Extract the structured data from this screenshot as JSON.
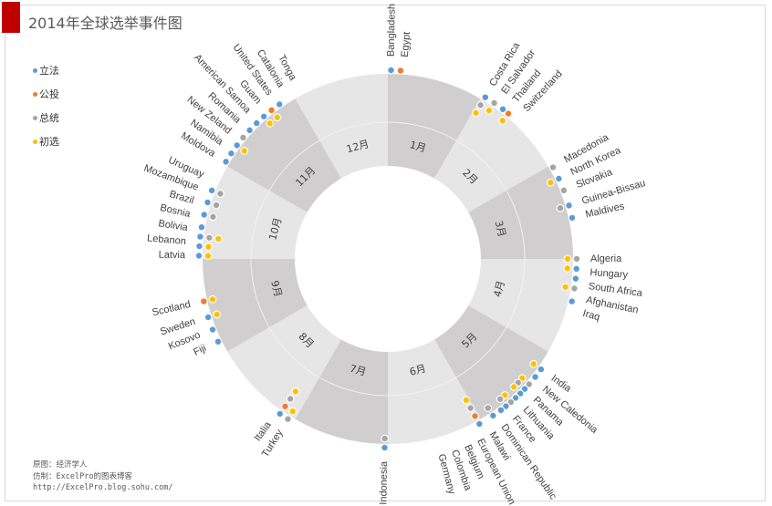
{
  "title": "2014年全球选举事件图",
  "legend": [
    {
      "key": "leg",
      "label": "立法",
      "color": "#5b9bd5"
    },
    {
      "key": "ref",
      "label": "公投",
      "color": "#ed7d31"
    },
    {
      "key": "pres",
      "label": "总统",
      "color": "#a5a5a5"
    },
    {
      "key": "pri",
      "label": "初选",
      "color": "#ffc000"
    }
  ],
  "source": {
    "line1": "原图：经济学人",
    "line2": "仿制：ExcelPro的图表博客",
    "line3": "http://ExcelPro.blog.sohu.com/"
  },
  "chart_data": {
    "type": "radial-timeline",
    "title": "2014年全球选举事件图",
    "months": [
      "1月",
      "2月",
      "3月",
      "4月",
      "5月",
      "6月",
      "7月",
      "8月",
      "9月",
      "10月",
      "11月",
      "12月"
    ],
    "month_colors": {
      "dark": "#d0cece",
      "light": "#e7e6e6"
    },
    "events": [
      {
        "country": "Bangladesh",
        "month": 1,
        "day": 2,
        "types": [
          "leg"
        ]
      },
      {
        "country": "Egypt",
        "month": 1,
        "day": 5,
        "types": [
          "ref"
        ]
      },
      {
        "country": "Costa Rica",
        "month": 2,
        "day": 2,
        "types": [
          "leg",
          "pres",
          "pri"
        ]
      },
      {
        "country": "El Salvador",
        "month": 2,
        "day": 5,
        "types": [
          "pres",
          "pri"
        ]
      },
      {
        "country": "Thailand",
        "month": 2,
        "day": 8,
        "types": [
          "leg"
        ]
      },
      {
        "country": "Switzerland",
        "month": 2,
        "day": 10,
        "types": [
          "ref",
          "pri"
        ]
      },
      {
        "country": "Macedonia",
        "month": 3,
        "day": 2,
        "types": [
          "pres"
        ]
      },
      {
        "country": "North Korea",
        "month": 3,
        "day": 6,
        "types": [
          "leg",
          "pri"
        ]
      },
      {
        "country": "Slovakia",
        "month": 3,
        "day": 10,
        "types": [
          "pres"
        ]
      },
      {
        "country": "Guinea-Bissau",
        "month": 3,
        "day": 15,
        "types": [
          "leg",
          "pres"
        ]
      },
      {
        "country": "Maldives",
        "month": 3,
        "day": 19,
        "types": [
          "leg"
        ]
      },
      {
        "country": "Algeria",
        "month": 4,
        "day": 1,
        "types": [
          "pres",
          "pri"
        ]
      },
      {
        "country": "Hungary",
        "month": 4,
        "day": 4,
        "types": [
          "leg",
          "pri"
        ]
      },
      {
        "country": "South Africa",
        "month": 4,
        "day": 7,
        "types": [
          "leg"
        ]
      },
      {
        "country": "Afghanistan",
        "month": 4,
        "day": 10,
        "types": [
          "pres",
          "pri"
        ]
      },
      {
        "country": "Iraq",
        "month": 4,
        "day": 14,
        "types": [
          "leg"
        ]
      },
      {
        "country": "India",
        "month": 5,
        "day": 7,
        "types": [
          "leg",
          "pri"
        ]
      },
      {
        "country": "New Caledonia",
        "month": 5,
        "day": 10,
        "types": [
          "leg"
        ]
      },
      {
        "country": "Panama",
        "month": 5,
        "day": 13,
        "types": [
          "pres",
          "pri"
        ]
      },
      {
        "country": "Lithuania",
        "month": 5,
        "day": 15,
        "types": [
          "leg",
          "pres"
        ]
      },
      {
        "country": "France",
        "month": 5,
        "day": 17,
        "types": [
          "leg",
          "pri"
        ]
      },
      {
        "country": "Dominican Republic",
        "month": 5,
        "day": 19,
        "types": [
          "leg"
        ]
      },
      {
        "country": "Malawi",
        "month": 5,
        "day": 21,
        "types": [
          "pres",
          "pri"
        ]
      },
      {
        "country": "European Union",
        "month": 5,
        "day": 23,
        "types": [
          "leg",
          "pres"
        ]
      },
      {
        "country": "Belgium",
        "month": 5,
        "day": 25,
        "types": [
          "leg"
        ]
      },
      {
        "country": "Colombia",
        "month": 5,
        "day": 28,
        "types": [
          "leg",
          "pres"
        ]
      },
      {
        "country": "Germany",
        "month": 6,
        "day": 2,
        "types": [
          "leg",
          "ref",
          "pres",
          "pri"
        ]
      },
      {
        "country": "Indonesia",
        "month": 7,
        "day": 2,
        "types": [
          "leg",
          "pres"
        ]
      },
      {
        "country": "Turkey",
        "month": 8,
        "day": 3,
        "types": [
          "pres",
          "pri"
        ]
      },
      {
        "country": "Italia",
        "month": 8,
        "day": 6,
        "types": [
          "leg",
          "ref",
          "pres",
          "pri"
        ]
      },
      {
        "country": "Fiji",
        "month": 9,
        "day": 5,
        "types": [
          "leg"
        ]
      },
      {
        "country": "Kosovo",
        "month": 9,
        "day": 9,
        "types": [
          "leg"
        ]
      },
      {
        "country": "Sweden",
        "month": 9,
        "day": 13,
        "types": [
          "leg",
          "pri"
        ]
      },
      {
        "country": "Scotland",
        "month": 9,
        "day": 18,
        "types": [
          "ref",
          "pri"
        ]
      },
      {
        "country": "Latvia",
        "month": 10,
        "day": 2,
        "types": [
          "leg",
          "pri"
        ]
      },
      {
        "country": "Lebanon",
        "month": 10,
        "day": 5,
        "types": [
          "leg",
          "pri"
        ]
      },
      {
        "country": "Bolivia",
        "month": 10,
        "day": 8,
        "types": [
          "leg",
          "pres",
          "pri"
        ]
      },
      {
        "country": "Bosnia",
        "month": 10,
        "day": 11,
        "types": [
          "leg"
        ]
      },
      {
        "country": "Brazil",
        "month": 10,
        "day": 15,
        "types": [
          "leg",
          "pres"
        ]
      },
      {
        "country": "Mozambique",
        "month": 10,
        "day": 19,
        "types": [
          "leg",
          "pres"
        ]
      },
      {
        "country": "Uruguay",
        "month": 10,
        "day": 23,
        "types": [
          "leg",
          "pres"
        ]
      },
      {
        "country": "Moldova",
        "month": 11,
        "day": 2,
        "types": [
          "leg"
        ]
      },
      {
        "country": "Namibia",
        "month": 11,
        "day": 5,
        "types": [
          "leg"
        ]
      },
      {
        "country": "New Zeland",
        "month": 11,
        "day": 8,
        "types": [
          "leg",
          "pri"
        ]
      },
      {
        "country": "Romania",
        "month": 11,
        "day": 11,
        "types": [
          "pres"
        ]
      },
      {
        "country": "American Samoa",
        "month": 11,
        "day": 14,
        "types": [
          "leg"
        ]
      },
      {
        "country": "Guam",
        "month": 11,
        "day": 17,
        "types": [
          "leg"
        ]
      },
      {
        "country": "United States",
        "month": 11,
        "day": 20,
        "types": [
          "leg",
          "pri"
        ]
      },
      {
        "country": "Catalonia",
        "month": 11,
        "day": 23,
        "types": [
          "ref",
          "pri"
        ]
      },
      {
        "country": "Tonga",
        "month": 11,
        "day": 26,
        "types": [
          "leg"
        ]
      }
    ]
  }
}
